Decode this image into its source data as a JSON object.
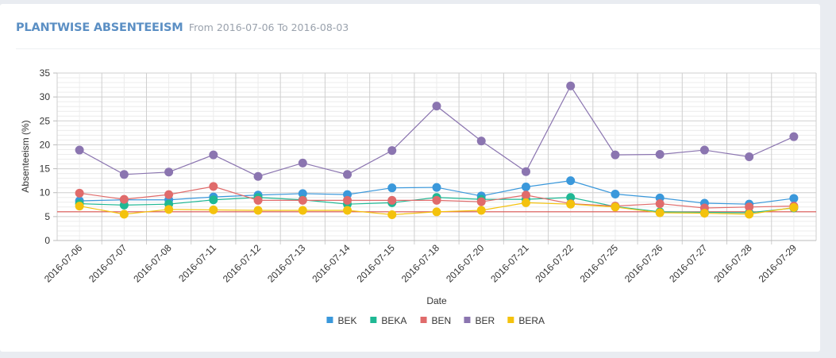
{
  "header": {
    "title": "PLANTWISE ABSENTEEISM",
    "subtitle": "From 2016-07-06 To 2016-08-03"
  },
  "chart_data": {
    "type": "line",
    "title": "PLANTWISE ABSENTEEISM",
    "subtitle": "From 2016-07-06 To 2016-08-03",
    "xlabel": "Date",
    "ylabel": "Absenteeism (%)",
    "ylim": [
      0,
      35
    ],
    "yticks": [
      0,
      5,
      10,
      15,
      20,
      25,
      30,
      35
    ],
    "grid": true,
    "legend_position": "bottom",
    "categories": [
      "2016-07-06",
      "2016-07-07",
      "2016-07-08",
      "2016-07-11",
      "2016-07-12",
      "2016-07-13",
      "2016-07-14",
      "2016-07-15",
      "2016-07-18",
      "2016-07-20",
      "2016-07-21",
      "2016-07-22",
      "2016-07-25",
      "2016-07-26",
      "2016-07-27",
      "2016-07-28",
      "2016-07-29"
    ],
    "series": [
      {
        "name": "BEK",
        "color": "#3a98db",
        "values": [
          8.3,
          8.5,
          8.5,
          9.1,
          9.5,
          9.8,
          9.6,
          11.0,
          11.1,
          9.3,
          11.2,
          12.5,
          9.7,
          8.9,
          7.8,
          7.6,
          8.8
        ]
      },
      {
        "name": "BEKA",
        "color": "#1fb894",
        "values": [
          7.7,
          7.4,
          7.6,
          8.5,
          9.0,
          8.5,
          7.6,
          7.9,
          9.0,
          8.6,
          8.6,
          9.0,
          7.1,
          6.0,
          5.9,
          5.8,
          6.8
        ]
      },
      {
        "name": "BEN",
        "color": "#e06b6b",
        "values": [
          9.9,
          8.6,
          9.6,
          11.3,
          8.4,
          8.4,
          8.4,
          8.4,
          8.4,
          8.1,
          9.5,
          7.7,
          7.2,
          7.7,
          6.8,
          7.0,
          7.2
        ]
      },
      {
        "name": "BER",
        "color": "#8b75b0",
        "values": [
          18.9,
          13.8,
          14.3,
          17.9,
          13.4,
          16.2,
          13.8,
          18.8,
          28.1,
          20.8,
          14.4,
          32.3,
          17.9,
          18.0,
          18.9,
          17.5,
          21.7
        ]
      },
      {
        "name": "BERA",
        "color": "#f4c20d",
        "values": [
          7.2,
          5.5,
          6.5,
          6.4,
          6.3,
          6.3,
          6.3,
          5.4,
          6.0,
          6.3,
          7.9,
          7.6,
          7.0,
          5.8,
          5.7,
          5.5,
          6.9
        ]
      }
    ],
    "reference_line": {
      "value": 6.0,
      "color": "#d9534f"
    }
  }
}
